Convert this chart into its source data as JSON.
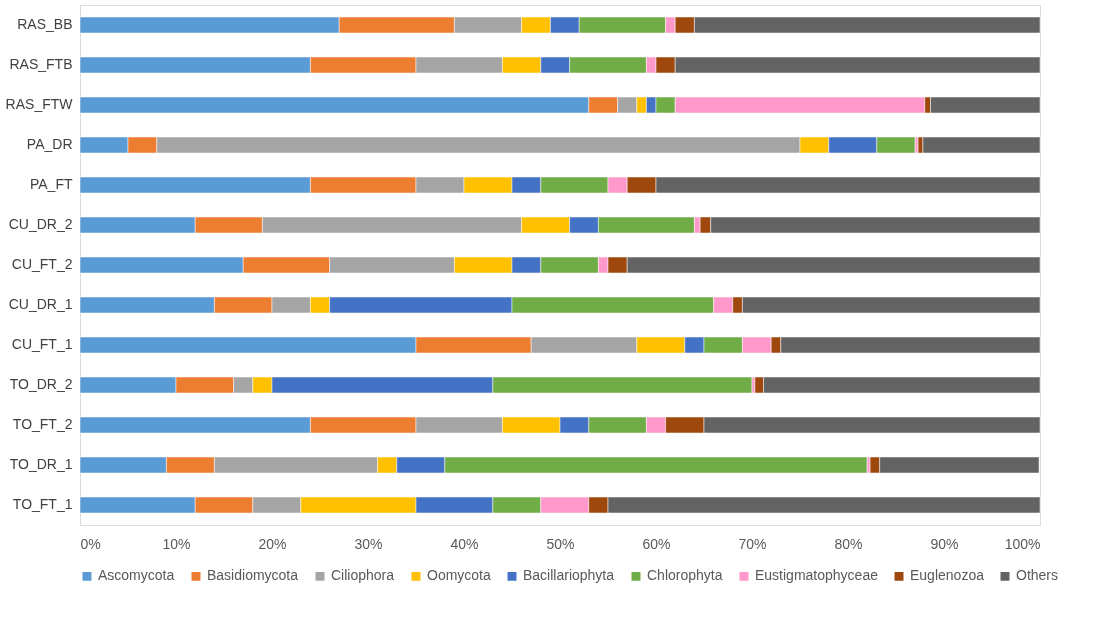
{
  "chart_data": {
    "type": "bar",
    "orientation": "horizontal",
    "stacked": true,
    "legend": "bottom",
    "grid": false,
    "categories": [
      "RAS_BB",
      "RAS_FTB",
      "RAS_FTW",
      "PA_DR",
      "PA_FT",
      "CU_DR_2",
      "CU_FT_2",
      "CU_DR_1",
      "CU_FT_1",
      "TO_DR_2",
      "TO_FT_2",
      "TO_DR_1",
      "TO_FT_1"
    ],
    "xlim": [
      0,
      100
    ],
    "xticks": [
      {
        "value": 0,
        "label": "0%"
      },
      {
        "value": 10,
        "label": "10%"
      },
      {
        "value": 20,
        "label": "20%"
      },
      {
        "value": 30,
        "label": "30%"
      },
      {
        "value": 40,
        "label": "40%"
      },
      {
        "value": 50,
        "label": "50%"
      },
      {
        "value": 60,
        "label": "60%"
      },
      {
        "value": 70,
        "label": "70%"
      },
      {
        "value": 80,
        "label": "80%"
      },
      {
        "value": 90,
        "label": "90%"
      },
      {
        "value": 100,
        "label": "100%"
      }
    ],
    "series": [
      {
        "name": "Ascomycota",
        "color": "#5b9bd5",
        "values": [
          27,
          24,
          53,
          5,
          24,
          12,
          17,
          14,
          35,
          10,
          24,
          9,
          12
        ]
      },
      {
        "name": "Basidiomycota",
        "color": "#ed7d31",
        "values": [
          12,
          11,
          3,
          3,
          11,
          7,
          9,
          6,
          12,
          6,
          11,
          5,
          6
        ]
      },
      {
        "name": "Ciliophora",
        "color": "#a5a5a5",
        "values": [
          7,
          9,
          2,
          67,
          5,
          27,
          13,
          4,
          11,
          2,
          9,
          17,
          5
        ]
      },
      {
        "name": "Oomycota",
        "color": "#ffc000",
        "values": [
          3,
          4,
          1,
          3,
          5,
          5,
          6,
          2,
          5,
          2,
          6,
          2,
          12
        ]
      },
      {
        "name": "Bacillariophyta",
        "color": "#4472c4",
        "values": [
          3,
          3,
          1,
          5,
          3,
          3,
          3,
          19,
          2,
          23,
          3,
          5,
          8
        ]
      },
      {
        "name": "Chlorophyta",
        "color": "#70ad47",
        "values": [
          9,
          8,
          2,
          4,
          7,
          10,
          6,
          21,
          4,
          27,
          6,
          44,
          5
        ]
      },
      {
        "name": "Eustigmatophyceae",
        "color": "#ff99cc",
        "values": [
          1,
          1,
          26,
          0.3,
          2,
          0.6,
          1,
          2,
          3,
          0.3,
          2,
          0.3,
          5
        ]
      },
      {
        "name": "Euglenozoa",
        "color": "#9e480e",
        "values": [
          2,
          2,
          0.6,
          0.5,
          3,
          1.1,
          2,
          1,
          1,
          0.9,
          4,
          1,
          2
        ]
      },
      {
        "name": "Others",
        "color": "#636363",
        "values": [
          36,
          38,
          11.4,
          12.2,
          40,
          34.3,
          43,
          31,
          27,
          28.8,
          35,
          16.6,
          45
        ]
      }
    ]
  }
}
